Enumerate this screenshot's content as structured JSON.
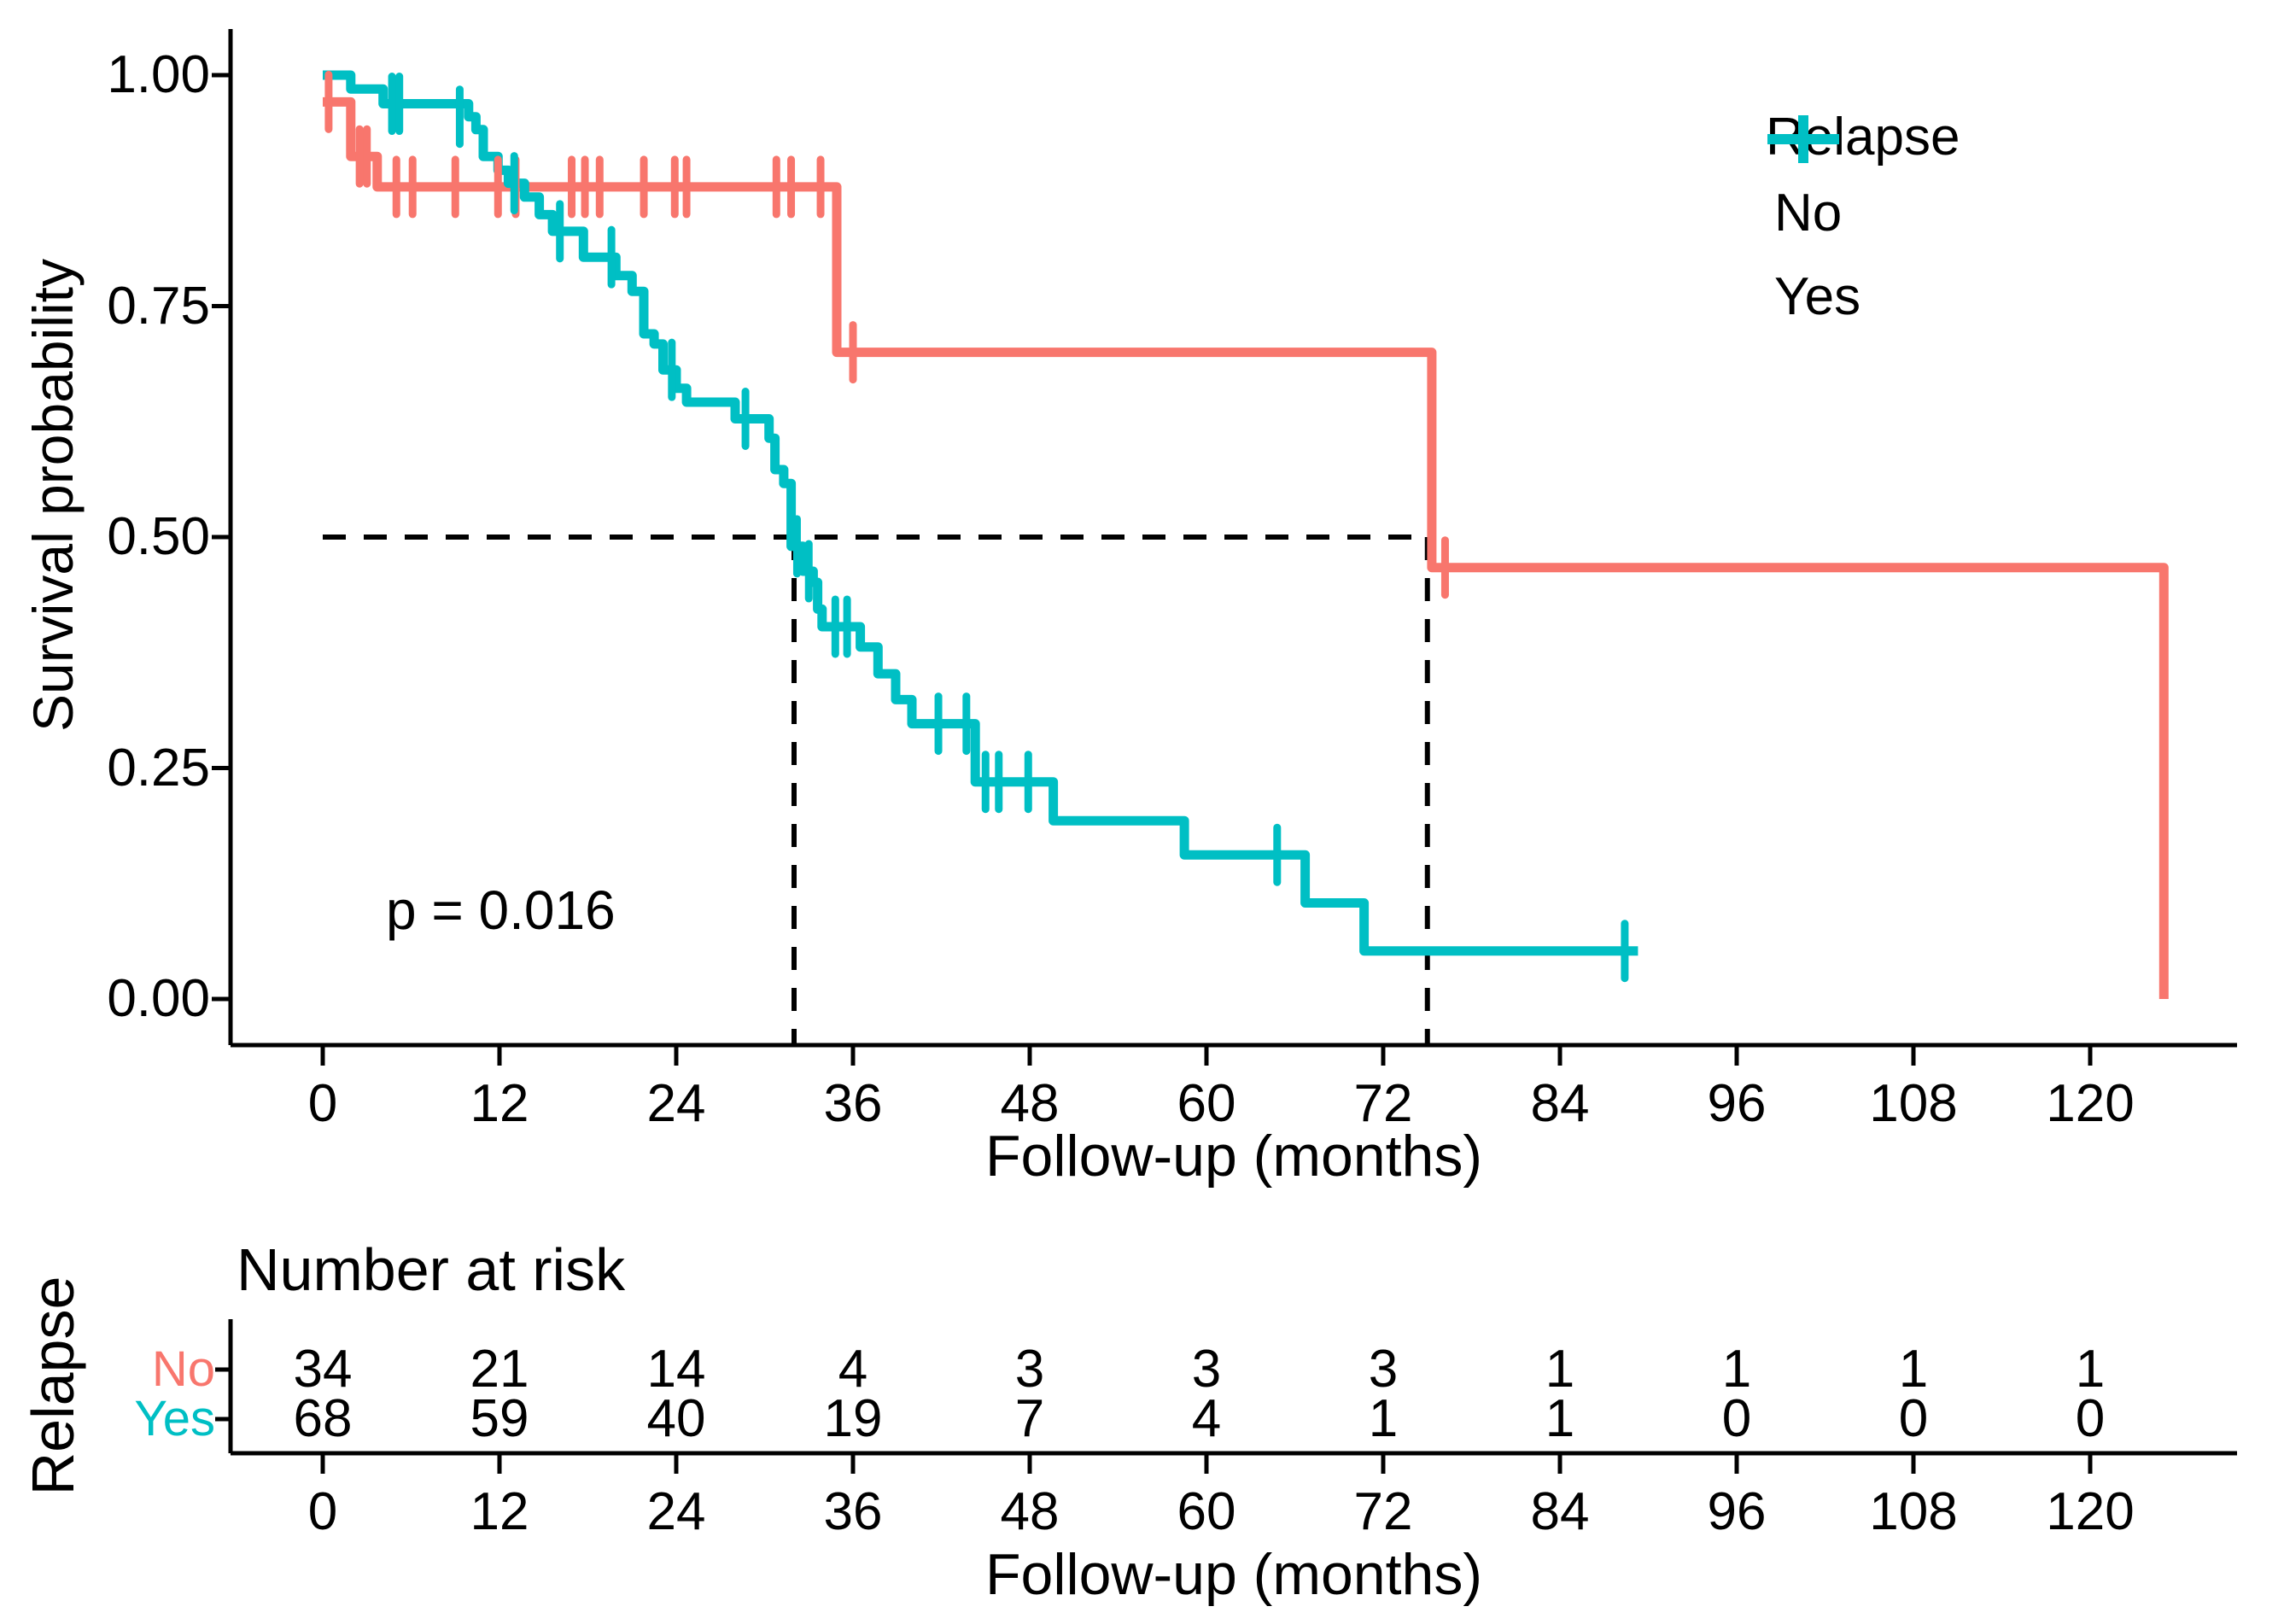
{
  "figure": {
    "background": "#FFFFFF",
    "text_color": "#000000"
  },
  "chart_data": {
    "type": "line",
    "subtype": "kaplan-meier-step-curve",
    "title": "",
    "xlabel": "Follow-up (months)",
    "ylabel": "Survival probability",
    "pvalue": "p = 0.016",
    "xlim": [
      0,
      130
    ],
    "ylim": [
      0,
      1
    ],
    "x_ticks": [
      0,
      12,
      24,
      36,
      48,
      60,
      72,
      84,
      96,
      108,
      120
    ],
    "y_ticks": [
      {
        "v": 1.0,
        "label": "1.00"
      },
      {
        "v": 0.75,
        "label": "0.75"
      },
      {
        "v": 0.5,
        "label": "0.50"
      },
      {
        "v": 0.25,
        "label": "0.25"
      },
      {
        "v": 0.0,
        "label": "0.00"
      }
    ],
    "grid": false,
    "legend": {
      "title": "Relapse",
      "position": "top-right",
      "entries": [
        {
          "label": "No",
          "color": "#F8766D"
        },
        {
          "label": "Yes",
          "color": "#00BFC4"
        }
      ]
    },
    "median_lines": {
      "y": 0.5,
      "t_start": 0,
      "t_end": 75.0,
      "verticals": [
        32.0,
        75.0
      ]
    },
    "series": [
      {
        "name": "No",
        "color": "#F8766D",
        "steps": [
          [
            0,
            0.971
          ],
          [
            1.9,
            0.912
          ],
          [
            3.7,
            0.879
          ],
          [
            34.9,
            0.7
          ],
          [
            75.3,
            0.467
          ],
          [
            125.0,
            0.467
          ],
          [
            125.0,
            0.0
          ]
        ],
        "censors": [
          [
            0.4,
            0.971
          ],
          [
            2.5,
            0.912
          ],
          [
            3.0,
            0.912
          ],
          [
            5.0,
            0.879
          ],
          [
            6.1,
            0.879
          ],
          [
            9.0,
            0.879
          ],
          [
            11.9,
            0.879
          ],
          [
            13.1,
            0.879
          ],
          [
            16.9,
            0.879
          ],
          [
            17.8,
            0.879
          ],
          [
            18.8,
            0.879
          ],
          [
            21.8,
            0.879
          ],
          [
            23.9,
            0.879
          ],
          [
            24.7,
            0.879
          ],
          [
            30.8,
            0.879
          ],
          [
            31.8,
            0.879
          ],
          [
            33.8,
            0.879
          ],
          [
            36.0,
            0.7
          ],
          [
            76.2,
            0.467
          ]
        ]
      },
      {
        "name": "Yes",
        "color": "#00BFC4",
        "steps": [
          [
            0,
            1.0
          ],
          [
            1.9,
            0.985
          ],
          [
            4.1,
            0.969
          ],
          [
            9.9,
            0.955
          ],
          [
            10.4,
            0.941
          ],
          [
            10.9,
            0.912
          ],
          [
            11.9,
            0.897
          ],
          [
            12.6,
            0.883
          ],
          [
            13.7,
            0.868
          ],
          [
            14.7,
            0.849
          ],
          [
            15.6,
            0.831
          ],
          [
            17.7,
            0.803
          ],
          [
            19.9,
            0.783
          ],
          [
            21.0,
            0.766
          ],
          [
            21.8,
            0.72
          ],
          [
            22.5,
            0.709
          ],
          [
            23.1,
            0.681
          ],
          [
            24.0,
            0.661
          ],
          [
            24.7,
            0.646
          ],
          [
            28.0,
            0.628
          ],
          [
            30.3,
            0.607
          ],
          [
            30.7,
            0.573
          ],
          [
            31.3,
            0.558
          ],
          [
            31.8,
            0.49
          ],
          [
            32.6,
            0.463
          ],
          [
            33.3,
            0.451
          ],
          [
            33.6,
            0.422
          ],
          [
            33.9,
            0.403
          ],
          [
            36.5,
            0.381
          ],
          [
            37.7,
            0.352
          ],
          [
            38.9,
            0.324
          ],
          [
            40.0,
            0.298
          ],
          [
            44.3,
            0.235
          ],
          [
            49.6,
            0.193
          ],
          [
            58.5,
            0.156
          ],
          [
            66.7,
            0.104
          ],
          [
            70.7,
            0.052
          ],
          [
            89.3,
            0.052
          ]
        ],
        "censors": [
          [
            4.7,
            0.969
          ],
          [
            5.2,
            0.969
          ],
          [
            9.3,
            0.955
          ],
          [
            13.0,
            0.883
          ],
          [
            16.1,
            0.831
          ],
          [
            19.6,
            0.803
          ],
          [
            23.7,
            0.681
          ],
          [
            28.7,
            0.628
          ],
          [
            32.2,
            0.49
          ],
          [
            33.0,
            0.463
          ],
          [
            34.8,
            0.403
          ],
          [
            35.6,
            0.403
          ],
          [
            41.8,
            0.298
          ],
          [
            43.7,
            0.298
          ],
          [
            45.0,
            0.235
          ],
          [
            45.9,
            0.235
          ],
          [
            47.9,
            0.235
          ],
          [
            64.8,
            0.156
          ],
          [
            88.4,
            0.052
          ]
        ]
      }
    ],
    "risk_table": {
      "title": "Number at risk",
      "axis_label": "Relapse",
      "xlabel": "Follow-up (months)",
      "times": [
        0,
        12,
        24,
        36,
        48,
        60,
        72,
        84,
        96,
        108,
        120
      ],
      "rows": [
        {
          "label": "No",
          "color": "#F8766D",
          "counts": [
            34,
            21,
            14,
            4,
            3,
            3,
            3,
            1,
            1,
            1,
            1
          ]
        },
        {
          "label": "Yes",
          "color": "#00BFC4",
          "counts": [
            68,
            59,
            40,
            19,
            7,
            4,
            1,
            1,
            0,
            0,
            0
          ]
        }
      ]
    }
  }
}
